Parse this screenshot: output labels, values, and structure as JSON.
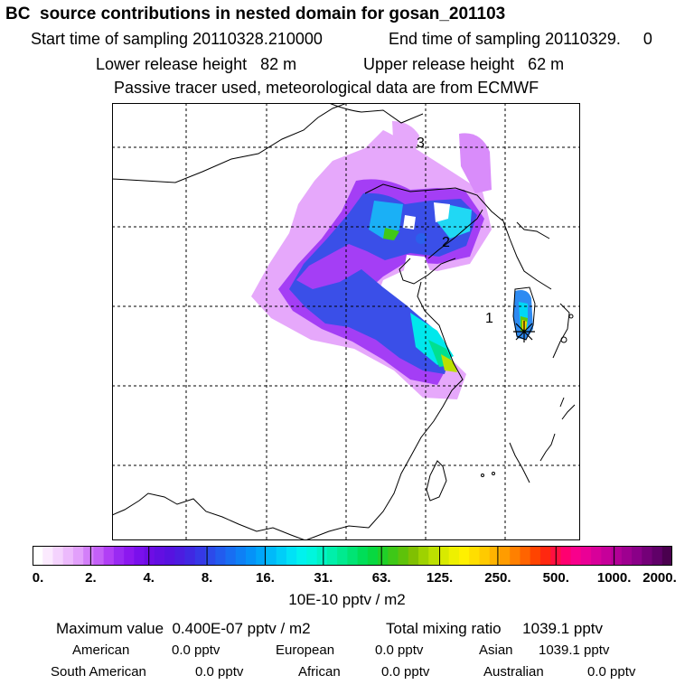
{
  "header": {
    "title": "BC  source contributions in nested domain for gosan_201103",
    "start_label": "Start time of sampling 20110328.210000",
    "end_label": "End time of sampling 20110329.     0",
    "lower_label": "Lower release height   82 m",
    "upper_label": "Upper release height   62 m",
    "tracer_line": "Passive tracer used, meteorological data are from ECMWF"
  },
  "map": {
    "labels": [
      "1",
      "2",
      "3"
    ],
    "receptor_icon": "asterisk-receptor-marker"
  },
  "colorbar": {
    "units": "10E-10 pptv / m2",
    "ticks": [
      "0.",
      "2.",
      "4.",
      "8.",
      "16.",
      "31.",
      "63.",
      "125.",
      "250.",
      "500.",
      "1000.",
      "2000."
    ],
    "colors": [
      "#ffffff",
      "#fbeafe",
      "#f4d3fd",
      "#ecbafc",
      "#e2a0fb",
      "#d37ff9",
      "#c460f7",
      "#b13ff5",
      "#9a2af2",
      "#8c18ef",
      "#7a10ec",
      "#6e0de5",
      "#620fe2",
      "#5712e0",
      "#4c1ce0",
      "#4028e2",
      "#3638e6",
      "#2c4aea",
      "#225cee",
      "#186ef2",
      "#0e80f5",
      "#0592f8",
      "#00a6fa",
      "#00baf9",
      "#00cef8",
      "#00e2f6",
      "#00f2ee",
      "#00f6dd",
      "#00f3c4",
      "#00efaa",
      "#00ea8f",
      "#00e474",
      "#00de58",
      "#08d840",
      "#20d028",
      "#3ec817",
      "#5ec20a",
      "#80c002",
      "#9ed200",
      "#bce000",
      "#d8ea00",
      "#eef000",
      "#fff000",
      "#ffde00",
      "#ffca00",
      "#ffb400",
      "#ff9c00",
      "#ff8000",
      "#ff6400",
      "#ff4400",
      "#ff2810",
      "#ff1040",
      "#ff0070",
      "#f8008c",
      "#ea0096",
      "#d8009a",
      "#c6009a",
      "#b20096",
      "#9e0090",
      "#8a0088",
      "#740078",
      "#600068",
      "#4a004e"
    ]
  },
  "stats": {
    "max_line": "Maximum value  0.400E-07 pptv / m2",
    "total_line": "Total mixing ratio     1039.1 pptv",
    "regions": [
      {
        "name": "American",
        "value": "0.0 pptv"
      },
      {
        "name": "European",
        "value": "0.0 pptv"
      },
      {
        "name": "Asian",
        "value": "1039.1 pptv"
      },
      {
        "name": "South American",
        "value": "0.0 pptv"
      },
      {
        "name": "African",
        "value": "0.0 pptv"
      },
      {
        "name": "Australian",
        "value": "0.0 pptv"
      }
    ]
  }
}
